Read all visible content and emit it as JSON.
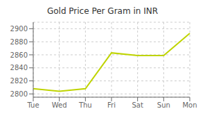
{
  "chart_data": {
    "type": "line",
    "title": "Gold Price Per Gram in INR",
    "categories": [
      "Tue",
      "Wed",
      "Thu",
      "Fri",
      "Sat",
      "Sun",
      "Mon"
    ],
    "values": [
      2808,
      2804,
      2808,
      2863,
      2859,
      2859,
      2893
    ],
    "color": "#bfd400",
    "ylim": [
      2795,
      2910
    ],
    "yticks": [
      2800,
      2820,
      2840,
      2860,
      2880,
      2900
    ],
    "grid": true
  }
}
